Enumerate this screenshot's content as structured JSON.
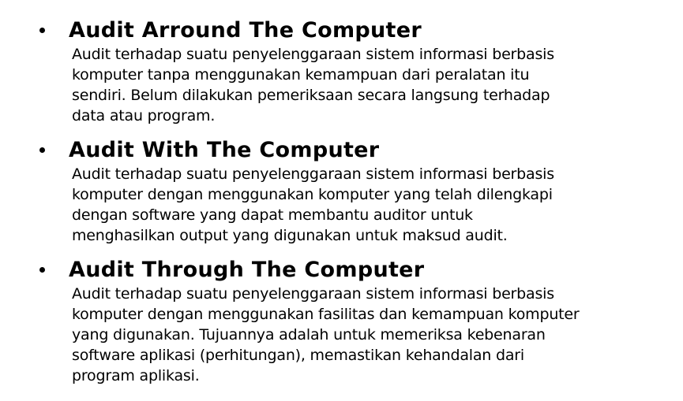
{
  "sections": [
    {
      "title": "Audit Arround The Computer",
      "lines": [
        "Audit terhadap suatu penyelenggaraan sistem informasi berbasis",
        "komputer tanpa menggunakan kemampuan dari peralatan itu",
        "sendiri.  Belum dilakukan pemeriksaan secara langsung terhadap",
        "data atau program."
      ]
    },
    {
      "title": "Audit With The Computer",
      "lines": [
        "Audit terhadap suatu penyelenggaraan sistem informasi berbasis",
        "komputer dengan menggunakan komputer yang telah dilengkapi",
        "dengan software yang dapat membantu  auditor untuk",
        "menghasilkan output yang digunakan untuk maksud audit."
      ]
    },
    {
      "title": "Audit Through The Computer",
      "lines": [
        "Audit terhadap suatu penyelenggaraan sistem informasi berbasis",
        "komputer dengan menggunakan fasilitas dan kemampuan komputer",
        "yang digunakan.  Tujuannya adalah untuk memeriksa kebenaran",
        "software aplikasi (perhitungan), memastikan kehandalan dari",
        "program aplikasi."
      ]
    }
  ]
}
